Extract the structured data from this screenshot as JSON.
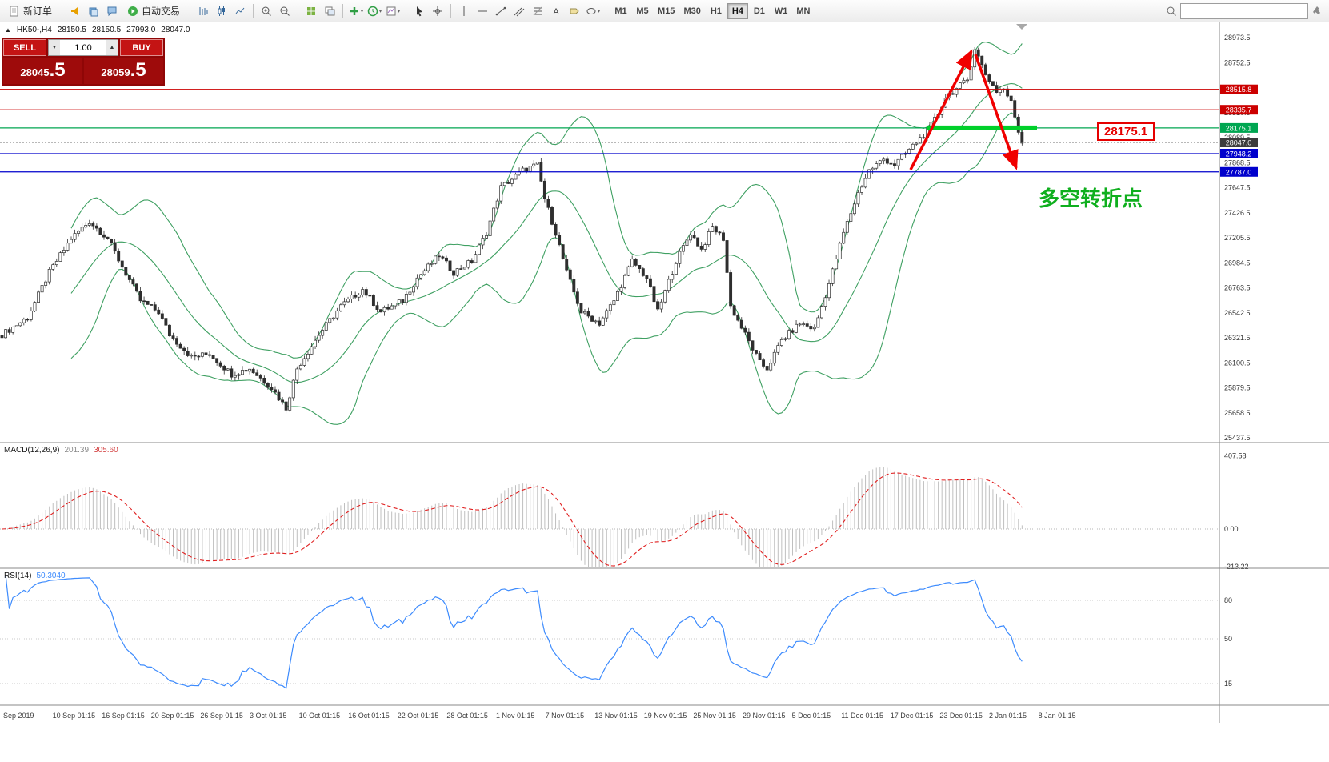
{
  "toolbar": {
    "new_order_label": "新订单",
    "autotrading_label": "自动交易",
    "timeframes": [
      "M1",
      "M5",
      "M15",
      "M30",
      "H1",
      "H4",
      "D1",
      "W1",
      "MN"
    ],
    "active_timeframe": "H4",
    "search_placeholder": ""
  },
  "symbol_header": {
    "symbol": "HK50-,H4",
    "open": "28150.5",
    "high": "28150.5",
    "low": "27993.0",
    "close": "28047.0"
  },
  "trade_panel": {
    "sell_label": "SELL",
    "buy_label": "BUY",
    "volume": "1.00",
    "sell_price": "28045",
    "sell_price_frac": ".5",
    "buy_price": "28059",
    "buy_price_frac": ".5"
  },
  "annotations": {
    "level_callout": "28175.1",
    "turning_point_text": "多空转折点",
    "callout_color": "#e60000",
    "turning_point_color": "#0faf1e"
  },
  "chart_data": {
    "type": "candlestick",
    "symbol": "HK50-",
    "timeframe": "H4",
    "ohlc_current": {
      "open": 28150.5,
      "high": 28150.5,
      "low": 27993.0,
      "close": 28047.0
    },
    "y_axis": {
      "max": 28973.5,
      "min": 25437.5,
      "tick_step": 221.0,
      "ticks": [
        28973.5,
        28752.5,
        28531.5,
        28310.5,
        28089.5,
        27868.5,
        27647.5,
        27426.5,
        27205.5,
        26984.5,
        26763.5,
        26542.5,
        26321.5,
        26100.5,
        25879.5,
        25658.5,
        25437.5
      ]
    },
    "levels": [
      {
        "value": 28515.8,
        "color": "#cc0000",
        "highlight": false
      },
      {
        "value": 28335.7,
        "color": "#cc0000",
        "highlight": false
      },
      {
        "value": 28175.1,
        "color": "#00a651",
        "highlight": true
      },
      {
        "value": 27948.2,
        "color": "#0000cc",
        "highlight": false
      },
      {
        "value": 27787.0,
        "color": "#0000cc",
        "highlight": false
      }
    ],
    "current_price": {
      "value": 28047.0,
      "color": "#3c3c3c"
    },
    "n_candles": 281,
    "price_waypoints": [
      [
        0,
        26350
      ],
      [
        7,
        26500
      ],
      [
        13,
        26900
      ],
      [
        19,
        27200
      ],
      [
        24,
        27350
      ],
      [
        29,
        27200
      ],
      [
        33,
        26950
      ],
      [
        38,
        26650
      ],
      [
        43,
        26550
      ],
      [
        46,
        26350
      ],
      [
        52,
        26150
      ],
      [
        57,
        26180
      ],
      [
        63,
        26000
      ],
      [
        68,
        26050
      ],
      [
        74,
        25880
      ],
      [
        78,
        25700
      ],
      [
        81,
        26050
      ],
      [
        87,
        26350
      ],
      [
        93,
        26600
      ],
      [
        99,
        26750
      ],
      [
        104,
        26550
      ],
      [
        110,
        26650
      ],
      [
        114,
        26850
      ],
      [
        120,
        27050
      ],
      [
        124,
        26900
      ],
      [
        129,
        27000
      ],
      [
        133,
        27250
      ],
      [
        137,
        27650
      ],
      [
        143,
        27800
      ],
      [
        147,
        27850
      ],
      [
        149,
        27550
      ],
      [
        152,
        27250
      ],
      [
        155,
        26900
      ],
      [
        159,
        26550
      ],
      [
        164,
        26450
      ],
      [
        168,
        26650
      ],
      [
        173,
        27000
      ],
      [
        177,
        26850
      ],
      [
        180,
        26550
      ],
      [
        185,
        27000
      ],
      [
        189,
        27250
      ],
      [
        192,
        27100
      ],
      [
        195,
        27300
      ],
      [
        198,
        27200
      ],
      [
        200,
        26600
      ],
      [
        204,
        26350
      ],
      [
        208,
        26100
      ],
      [
        210,
        26050
      ],
      [
        214,
        26300
      ],
      [
        219,
        26450
      ],
      [
        223,
        26400
      ],
      [
        227,
        26800
      ],
      [
        231,
        27250
      ],
      [
        235,
        27600
      ],
      [
        238,
        27800
      ],
      [
        242,
        27900
      ],
      [
        245,
        27850
      ],
      [
        248,
        27950
      ],
      [
        251,
        28050
      ],
      [
        254,
        28150
      ],
      [
        257,
        28300
      ],
      [
        259,
        28450
      ],
      [
        262,
        28520
      ],
      [
        265,
        28600
      ],
      [
        267,
        28880
      ],
      [
        270,
        28650
      ],
      [
        273,
        28500
      ],
      [
        275,
        28520
      ],
      [
        277,
        28400
      ],
      [
        279,
        28150
      ],
      [
        280,
        28047
      ]
    ],
    "bollinger": {
      "period": 20,
      "deviation": 2,
      "color": "#3fa062"
    },
    "macd": {
      "label": "MACD(12,26,9)",
      "main_value": "201.39",
      "signal_value": "305.60",
      "fast": 12,
      "slow": 26,
      "signal": 9,
      "axis": [
        {
          "v": 407.58,
          "t": "407.58"
        },
        {
          "v": 0,
          "t": "0.00"
        },
        {
          "v": -213.22,
          "t": "-213.22"
        }
      ]
    },
    "rsi": {
      "label": "RSI(14)",
      "value": "50.3040",
      "period": 14,
      "levels": [
        80,
        50,
        15
      ]
    },
    "x_axis": [
      "Sep 2019",
      "10 Sep 01:15",
      "16 Sep 01:15",
      "20 Sep 01:15",
      "26 Sep 01:15",
      "3 Oct 01:15",
      "10 Oct 01:15",
      "16 Oct 01:15",
      "22 Oct 01:15",
      "28 Oct 01:15",
      "1 Nov 01:15",
      "7 Nov 01:15",
      "13 Nov 01:15",
      "19 Nov 01:15",
      "25 Nov 01:15",
      "29 Nov 01:15",
      "5 Dec 01:15",
      "11 Dec 01:15",
      "17 Dec 01:15",
      "23 Dec 01:15",
      "2 Jan 01:15",
      "8 Jan 01:15"
    ]
  }
}
